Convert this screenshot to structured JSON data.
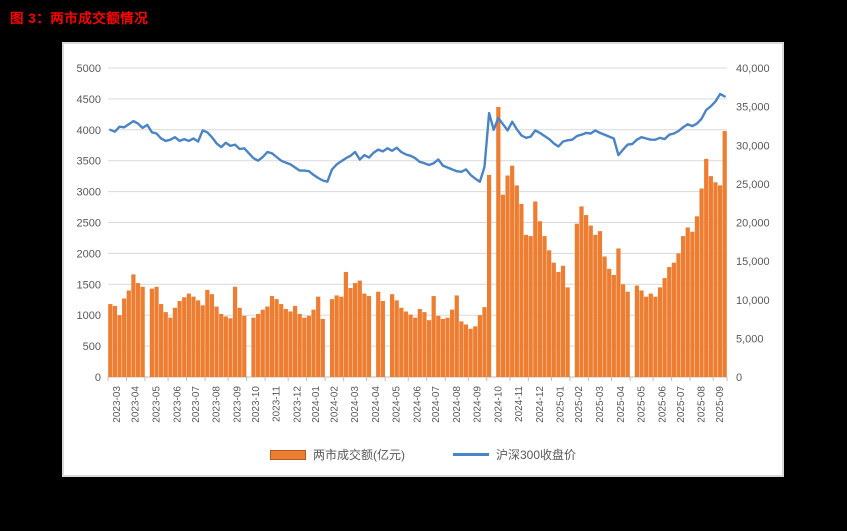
{
  "title": "图 3：两市成交额情况",
  "colors": {
    "title": "#FF0000",
    "background": "#000000",
    "panel_bg": "#FFFFFF",
    "panel_border": "#D9D9D9",
    "bar": "#ED7D31",
    "bar_swatch_border": "#AE5A21",
    "line": "#4A84C4",
    "grid": "#D9D9D9",
    "axis_line": "#BFBFBF",
    "axis_text": "#595959"
  },
  "legend": [
    {
      "label": "两市成交额(亿元)",
      "type": "bar"
    },
    {
      "label": "沪深300收盘价",
      "type": "line"
    }
  ],
  "axis_left": {
    "min": 0,
    "max": 5000,
    "step": 500,
    "ticks": [
      "0",
      "500",
      "1000",
      "1500",
      "2000",
      "2500",
      "3000",
      "3500",
      "4000",
      "4500",
      "5000"
    ]
  },
  "axis_right": {
    "min": 0,
    "max": 40000,
    "step": 5000,
    "ticks": [
      "0",
      "5,000",
      "10,000",
      "15,000",
      "20,000",
      "25,000",
      "30,000",
      "35,000",
      "40,000"
    ]
  },
  "chart_data": {
    "type": "combo-bar-line",
    "title": "两市成交额情况",
    "xlabel": "",
    "ylabel_left": "沪深300收盘价",
    "ylabel_right": "两市成交额(亿元)",
    "ylim_left": [
      0,
      5000
    ],
    "ylim_right": [
      0,
      40000
    ],
    "grid": "horizontal",
    "legend_position": "bottom-center",
    "resolution": "weekly estimates read from the plot; 0 = market-holiday gap in bars",
    "months": [
      {
        "label": "2023-03",
        "weeks": 4
      },
      {
        "label": "2023-04",
        "weeks": 4
      },
      {
        "label": "2023-05",
        "weeks": 5
      },
      {
        "label": "2023-06",
        "weeks": 4
      },
      {
        "label": "2023-07",
        "weeks": 4
      },
      {
        "label": "2023-08",
        "weeks": 5
      },
      {
        "label": "2023-09",
        "weeks": 4
      },
      {
        "label": "2023-10",
        "weeks": 4
      },
      {
        "label": "2023-11",
        "weeks": 5
      },
      {
        "label": "2023-12",
        "weeks": 4
      },
      {
        "label": "2024-01",
        "weeks": 4
      },
      {
        "label": "2024-02",
        "weeks": 4
      },
      {
        "label": "2024-03",
        "weeks": 5
      },
      {
        "label": "2024-04",
        "weeks": 4
      },
      {
        "label": "2024-05",
        "weeks": 5
      },
      {
        "label": "2024-06",
        "weeks": 4
      },
      {
        "label": "2024-07",
        "weeks": 4
      },
      {
        "label": "2024-08",
        "weeks": 5
      },
      {
        "label": "2024-09",
        "weeks": 4
      },
      {
        "label": "2024-10",
        "weeks": 5
      },
      {
        "label": "2024-11",
        "weeks": 4
      },
      {
        "label": "2024-12",
        "weeks": 5
      },
      {
        "label": "2025-01",
        "weeks": 4
      },
      {
        "label": "2025-02",
        "weeks": 4
      },
      {
        "label": "2025-03",
        "weeks": 5
      },
      {
        "label": "2025-04",
        "weeks": 4
      },
      {
        "label": "2025-05",
        "weeks": 5
      },
      {
        "label": "2025-06",
        "weeks": 4
      },
      {
        "label": "2025-07",
        "weeks": 4
      },
      {
        "label": "2025-08",
        "weeks": 5
      },
      {
        "label": "2025-09",
        "weeks": 3
      }
    ],
    "series": [
      {
        "name": "两市成交额(亿元)",
        "type": "bar",
        "axis": "right",
        "unit": "亿元",
        "values": [
          9440,
          9200,
          8000,
          10160,
          11200,
          13280,
          12160,
          11680,
          0,
          11440,
          11680,
          9440,
          8400,
          7680,
          8960,
          9840,
          10320,
          10800,
          10400,
          9920,
          9280,
          11280,
          10720,
          9120,
          8160,
          7840,
          7600,
          11680,
          8960,
          7920,
          0,
          7680,
          8160,
          8720,
          9120,
          10480,
          10080,
          9440,
          8800,
          8480,
          9200,
          8160,
          7680,
          7920,
          8720,
          10400,
          7520,
          0,
          10080,
          10560,
          10400,
          13600,
          11520,
          12160,
          12480,
          10800,
          10480,
          0,
          11040,
          9840,
          0,
          10720,
          9920,
          8960,
          8480,
          8080,
          7680,
          8800,
          8400,
          7360,
          10480,
          7920,
          7520,
          7680,
          8720,
          10560,
          7200,
          6800,
          6240,
          6560,
          8000,
          9040,
          26160,
          0,
          34960,
          23600,
          26080,
          27360,
          24800,
          22400,
          18400,
          18240,
          22720,
          20160,
          18240,
          16400,
          14800,
          13600,
          14400,
          11600,
          0,
          19840,
          22080,
          20960,
          19600,
          18400,
          18880,
          15600,
          14000,
          13200,
          16640,
          12000,
          11040,
          0,
          11840,
          11200,
          10400,
          10800,
          10400,
          11600,
          12800,
          14240,
          14800,
          16000,
          18240,
          19360,
          18800,
          20800,
          24400,
          28240,
          26000,
          25200,
          24800,
          31840
        ]
      },
      {
        "name": "沪深300收盘价",
        "type": "line",
        "axis": "left",
        "unit": "点",
        "values": [
          4000,
          3970,
          4050,
          4040,
          4090,
          4140,
          4100,
          4030,
          4080,
          3960,
          3940,
          3860,
          3820,
          3840,
          3880,
          3820,
          3850,
          3820,
          3860,
          3810,
          3990,
          3960,
          3880,
          3780,
          3720,
          3790,
          3740,
          3760,
          3690,
          3700,
          3620,
          3540,
          3500,
          3560,
          3640,
          3620,
          3560,
          3500,
          3470,
          3440,
          3390,
          3340,
          3340,
          3330,
          3270,
          3220,
          3180,
          3160,
          3360,
          3440,
          3490,
          3540,
          3580,
          3640,
          3520,
          3590,
          3550,
          3630,
          3680,
          3650,
          3700,
          3660,
          3710,
          3640,
          3600,
          3580,
          3540,
          3480,
          3460,
          3430,
          3460,
          3520,
          3420,
          3390,
          3360,
          3330,
          3320,
          3360,
          3270,
          3210,
          3160,
          3400,
          4270,
          4000,
          4190,
          4090,
          3990,
          4130,
          4010,
          3910,
          3870,
          3890,
          3990,
          3950,
          3900,
          3850,
          3780,
          3730,
          3810,
          3830,
          3840,
          3900,
          3920,
          3950,
          3940,
          3990,
          3950,
          3920,
          3890,
          3860,
          3590,
          3680,
          3760,
          3770,
          3840,
          3880,
          3860,
          3840,
          3840,
          3870,
          3850,
          3920,
          3940,
          3980,
          4040,
          4090,
          4060,
          4100,
          4180,
          4320,
          4380,
          4460,
          4580,
          4540
        ]
      }
    ]
  }
}
